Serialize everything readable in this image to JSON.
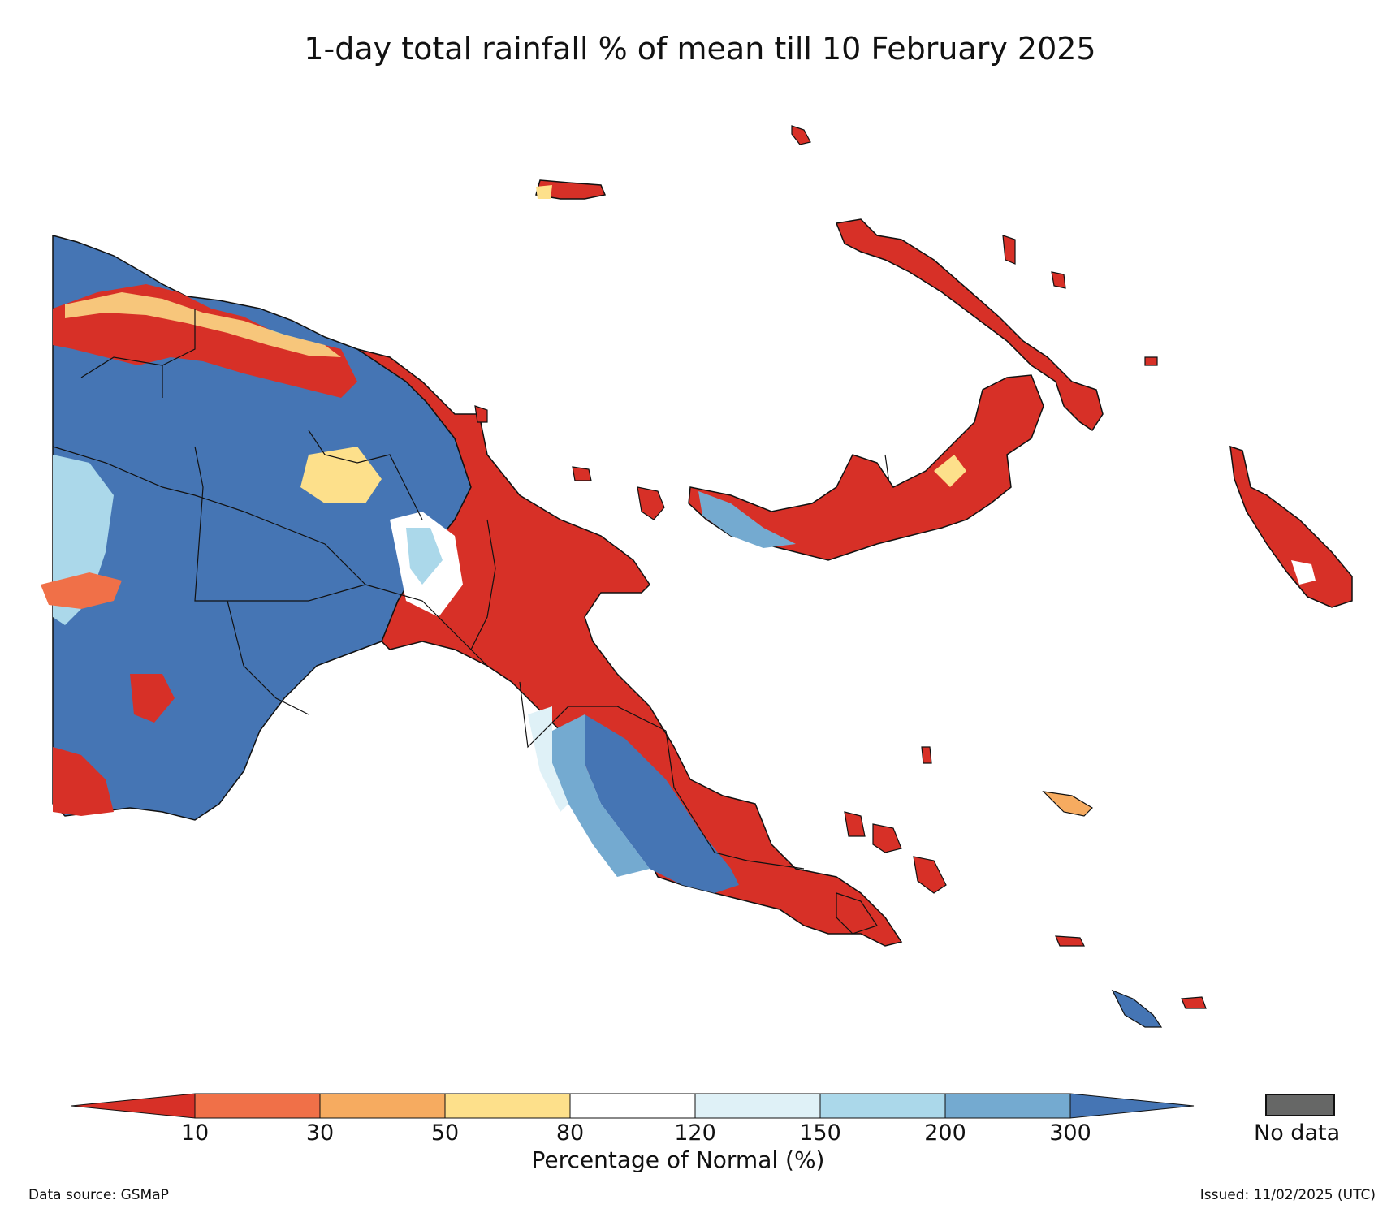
{
  "title": "1-day total rainfall % of mean till 10 February 2025",
  "colors": {
    "lt10": "#d73027",
    "c10_30": "#f07048",
    "c30_50": "#f6ab60",
    "c50_80": "#fde08b",
    "c80_120": "#ffffff",
    "c120_150": "#dff1f7",
    "c150_200": "#abd8ea",
    "c200_300": "#74aad0",
    "gt300": "#4575b4",
    "no_data": "#666766"
  },
  "colorbar": {
    "ticks": [
      "10",
      "30",
      "50",
      "80",
      "120",
      "150",
      "200",
      "300"
    ],
    "label": "Percentage of Normal (%)",
    "no_data_label": "No data"
  },
  "footer": {
    "source": "Data source: GSMaP",
    "issued": "Issued: 11/02/2025 (UTC)"
  }
}
